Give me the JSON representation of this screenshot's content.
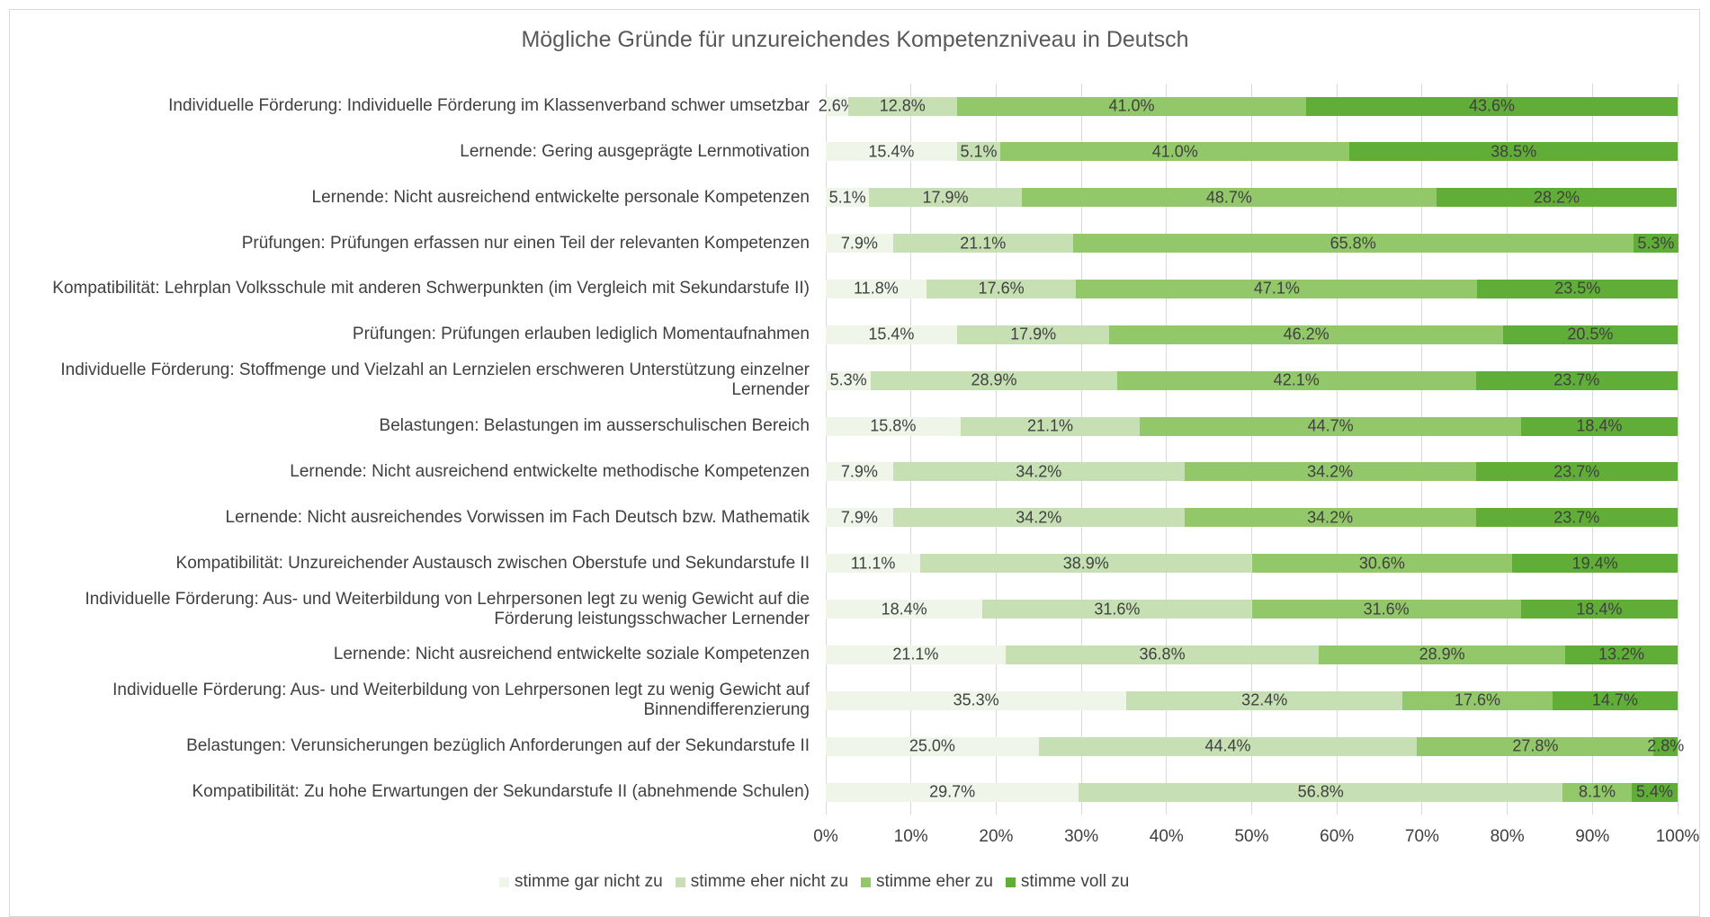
{
  "chart_data": {
    "type": "bar",
    "orientation": "horizontal",
    "stacked": true,
    "title": "Mögliche Gründe für unzureichendes Kompetenzniveau in Deutsch",
    "categories": [
      "Individuelle Förderung: Individuelle Förderung im Klassenverband schwer umsetzbar",
      "Lernende: Gering ausgeprägte Lernmotivation",
      "Lernende: Nicht ausreichend entwickelte personale Kompetenzen",
      "Prüfungen: Prüfungen erfassen nur einen Teil der relevanten Kompetenzen",
      "Kompatibilität: Lehrplan Volksschule mit anderen Schwerpunkten (im Vergleich mit Sekundarstufe II)",
      "Prüfungen: Prüfungen erlauben lediglich Momentaufnahmen",
      "Individuelle Förderung: Stoffmenge und Vielzahl an Lernzielen erschweren Unterstützung einzelner Lernender",
      "Belastungen: Belastungen im ausserschulischen Bereich",
      "Lernende: Nicht ausreichend entwickelte methodische Kompetenzen",
      "Lernende: Nicht ausreichendes Vorwissen im Fach Deutsch bzw. Mathematik",
      "Kompatibilität: Unzureichender Austausch zwischen Oberstufe und Sekundarstufe II",
      "Individuelle Förderung: Aus- und Weiterbildung von Lehrpersonen legt zu wenig Gewicht auf die Förderung leistungsschwacher Lernender",
      "Lernende: Nicht ausreichend entwickelte soziale Kompetenzen",
      "Individuelle Förderung: Aus- und Weiterbildung von Lehrpersonen legt zu wenig Gewicht auf Binnendifferenzierung",
      "Belastungen: Verunsicherungen bezüglich Anforderungen auf der Sekundarstufe II",
      "Kompatibilität: Zu hohe Erwartungen der Sekundarstufe II (abnehmende Schulen)"
    ],
    "series": [
      {
        "name": "stimme gar nicht zu",
        "color": "#eff6e9",
        "values": [
          2.6,
          15.4,
          5.1,
          7.9,
          11.8,
          15.4,
          5.3,
          15.8,
          7.9,
          7.9,
          11.1,
          18.4,
          21.1,
          35.3,
          25.0,
          29.7
        ],
        "value_labels": [
          "2.6%",
          "15.4%",
          "5.1%",
          "7.9%",
          "11.8%",
          "15.4%",
          "5.3%",
          "15.8%",
          "7.9%",
          "7.9%",
          "11.1%",
          "18.4%",
          "21.1%",
          "35.3%",
          "25.0%",
          "29.7%"
        ]
      },
      {
        "name": "stimme eher nicht zu",
        "color": "#c6e0b4",
        "values": [
          12.8,
          5.1,
          17.9,
          21.1,
          17.6,
          17.9,
          28.9,
          21.1,
          34.2,
          34.2,
          38.9,
          31.6,
          36.8,
          32.4,
          44.4,
          56.8
        ],
        "value_labels": [
          "12.8%",
          "5.1%",
          "17.9%",
          "21.1%",
          "17.6%",
          "17.9%",
          "28.9%",
          "21.1%",
          "34.2%",
          "34.2%",
          "38.9%",
          "31.6%",
          "36.8%",
          "32.4%",
          "44.4%",
          "56.8%"
        ]
      },
      {
        "name": "stimme eher zu",
        "color": "#92c86a",
        "values": [
          41.0,
          41.0,
          48.7,
          65.8,
          47.1,
          46.2,
          42.1,
          44.7,
          34.2,
          34.2,
          30.6,
          31.6,
          28.9,
          17.6,
          27.8,
          8.1
        ],
        "value_labels": [
          "41.0%",
          "41.0%",
          "48.7%",
          "65.8%",
          "47.1%",
          "46.2%",
          "42.1%",
          "44.7%",
          "34.2%",
          "34.2%",
          "30.6%",
          "31.6%",
          "28.9%",
          "17.6%",
          "27.8%",
          "8.1%"
        ]
      },
      {
        "name": "stimme voll zu",
        "color": "#60ae37",
        "values": [
          43.6,
          38.5,
          28.2,
          5.3,
          23.5,
          20.5,
          23.7,
          18.4,
          23.7,
          23.7,
          19.4,
          18.4,
          13.2,
          14.7,
          2.8,
          5.4
        ],
        "value_labels": [
          "43.6%",
          "38.5%",
          "28.2%",
          "5.3%",
          "23.5%",
          "20.5%",
          "23.7%",
          "18.4%",
          "23.7%",
          "23.7%",
          "19.4%",
          "18.4%",
          "13.2%",
          "14.7%",
          "2.8%",
          "5.4%"
        ]
      }
    ],
    "xlim": [
      0,
      100
    ],
    "xticks": [
      {
        "value": 0,
        "label": "0%"
      },
      {
        "value": 10,
        "label": "10%"
      },
      {
        "value": 20,
        "label": "20%"
      },
      {
        "value": 30,
        "label": "30%"
      },
      {
        "value": 40,
        "label": "40%"
      },
      {
        "value": 50,
        "label": "50%"
      },
      {
        "value": 60,
        "label": "60%"
      },
      {
        "value": 70,
        "label": "70%"
      },
      {
        "value": 80,
        "label": "80%"
      },
      {
        "value": 90,
        "label": "90%"
      },
      {
        "value": 100,
        "label": "100%"
      }
    ],
    "grid": true,
    "legend": "bottom"
  }
}
